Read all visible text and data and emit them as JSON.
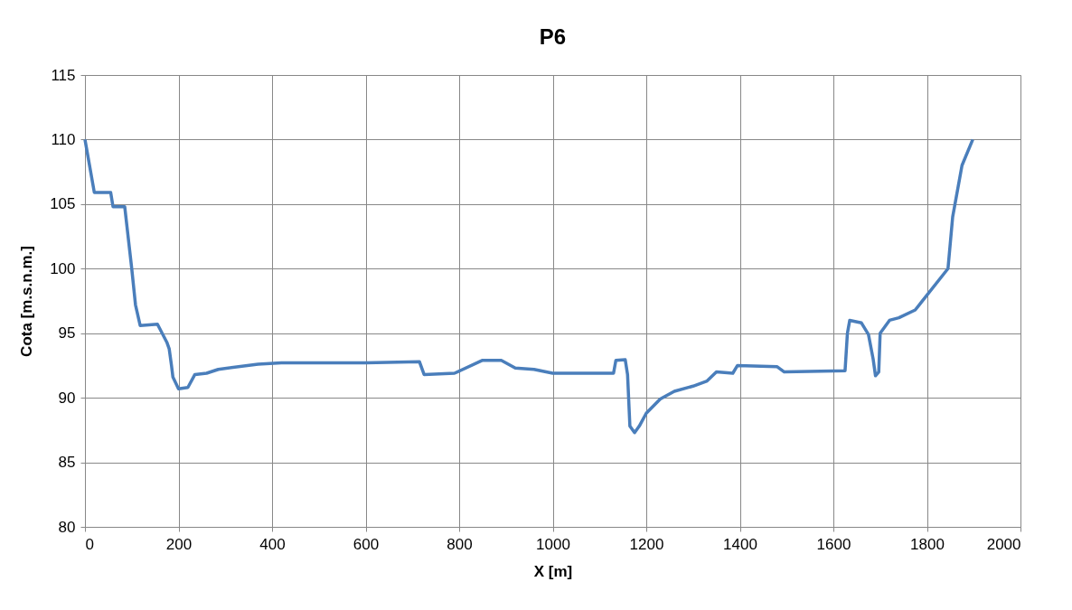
{
  "chart_data": {
    "type": "line",
    "title": "P6",
    "xlabel": "X [m]",
    "ylabel": "Cota [m.s.n.m.]",
    "series": [
      {
        "color": "#4a7ebb",
        "x": [
          0,
          20,
          55,
          60,
          85,
          100,
          108,
          118,
          155,
          175,
          180,
          185,
          188,
          200,
          220,
          235,
          260,
          285,
          370,
          420,
          600,
          715,
          725,
          790,
          850,
          890,
          920,
          960,
          1000,
          1130,
          1135,
          1155,
          1160,
          1165,
          1175,
          1185,
          1200,
          1230,
          1260,
          1300,
          1330,
          1350,
          1385,
          1395,
          1480,
          1495,
          1625,
          1630,
          1635,
          1660,
          1675,
          1685,
          1690,
          1697,
          1700,
          1720,
          1740,
          1775,
          1845,
          1855,
          1875,
          1898
        ],
        "values": [
          110,
          105.9,
          105.9,
          104.8,
          104.8,
          100,
          97.2,
          95.6,
          95.7,
          94.3,
          93.8,
          92.5,
          91.6,
          90.7,
          90.8,
          91.8,
          91.9,
          92.2,
          92.6,
          92.7,
          92.7,
          92.8,
          91.8,
          91.9,
          92.9,
          92.9,
          92.3,
          92.2,
          91.9,
          91.9,
          92.9,
          92.95,
          91.8,
          87.8,
          87.3,
          87.8,
          88.8,
          89.9,
          90.5,
          90.9,
          91.3,
          92,
          91.9,
          92.5,
          92.4,
          92.0,
          92.1,
          95,
          96,
          95.8,
          94.9,
          93,
          91.7,
          92,
          95,
          96,
          96.2,
          96.8,
          100,
          104,
          108,
          110
        ]
      }
    ],
    "xlim": [
      0,
      2000
    ],
    "xticks": [
      0,
      200,
      400,
      600,
      800,
      1000,
      1200,
      1400,
      1600,
      1800,
      2000
    ],
    "ylim": [
      80,
      115
    ],
    "yticks": [
      80,
      85,
      90,
      95,
      100,
      105,
      110,
      115
    ],
    "grid": true,
    "marker": "none",
    "line_style": "solid"
  }
}
